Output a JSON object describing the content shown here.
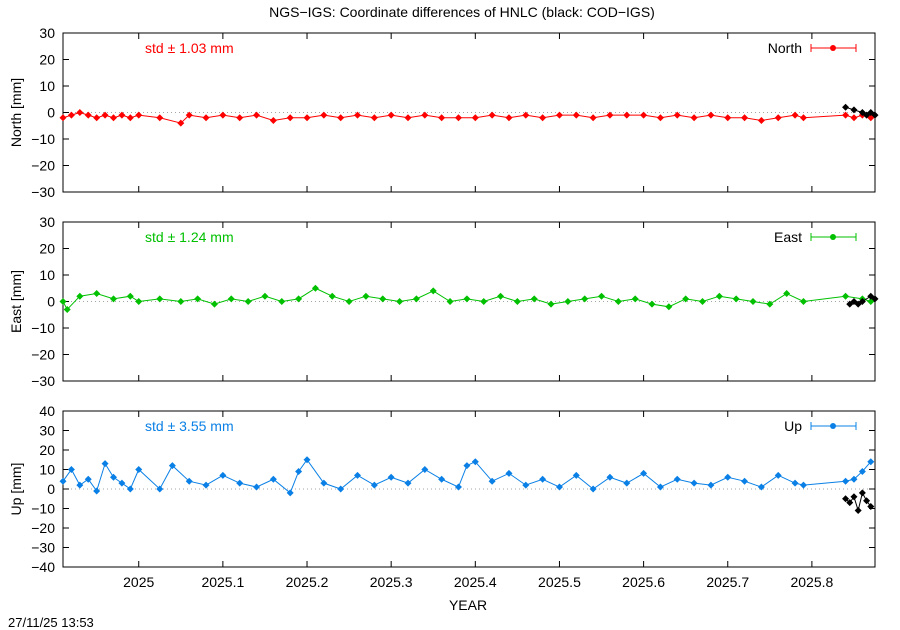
{
  "title": "NGS−IGS: Coordinate differences of HNLC (black: COD−IGS)",
  "xlabel": "YEAR",
  "timestamp": "27/11/25 13:53",
  "x_ticks": [
    {
      "v": 2025.0,
      "label": "2025"
    },
    {
      "v": 2025.1,
      "label": "2025.1"
    },
    {
      "v": 2025.2,
      "label": "2025.2"
    },
    {
      "v": 2025.3,
      "label": "2025.3"
    },
    {
      "v": 2025.4,
      "label": "2025.4"
    },
    {
      "v": 2025.5,
      "label": "2025.5"
    },
    {
      "v": 2025.6,
      "label": "2025.6"
    },
    {
      "v": 2025.7,
      "label": "2025.7"
    },
    {
      "v": 2025.8,
      "label": "2025.8"
    }
  ],
  "chart_data": [
    {
      "type": "line",
      "panel": "north",
      "ylabel": "North [mm]",
      "ylim": [
        -30,
        30
      ],
      "xlim": [
        2024.91,
        2025.875
      ],
      "y_ticks": [
        "30",
        "20",
        "10",
        "0",
        "−10",
        "−20",
        "−30"
      ],
      "y_tick_values": [
        30,
        20,
        10,
        0,
        -10,
        -20,
        -30
      ],
      "legend": "North",
      "legend_position": "top-right",
      "std_text": "std ± 1.03 mm",
      "color": "#ff0000",
      "series": [
        {
          "name": "North",
          "color": "#ff0000",
          "x": [
            2024.91,
            2024.92,
            2024.93,
            2024.94,
            2024.95,
            2024.96,
            2024.97,
            2024.98,
            2024.99,
            2025.0,
            2025.025,
            2025.05,
            2025.06,
            2025.08,
            2025.1,
            2025.12,
            2025.14,
            2025.16,
            2025.18,
            2025.2,
            2025.22,
            2025.24,
            2025.26,
            2025.28,
            2025.3,
            2025.32,
            2025.34,
            2025.36,
            2025.38,
            2025.4,
            2025.42,
            2025.44,
            2025.46,
            2025.48,
            2025.5,
            2025.52,
            2025.54,
            2025.56,
            2025.58,
            2025.6,
            2025.62,
            2025.64,
            2025.66,
            2025.68,
            2025.7,
            2025.72,
            2025.74,
            2025.76,
            2025.78,
            2025.79,
            2025.84,
            2025.85,
            2025.86,
            2025.87
          ],
          "y": [
            -2,
            -1,
            0,
            -1,
            -2,
            -1,
            -2,
            -1,
            -2,
            -1,
            -2,
            -4,
            -1,
            -2,
            -1,
            -2,
            -1,
            -3,
            -2,
            -2,
            -1,
            -2,
            -1,
            -2,
            -1,
            -2,
            -1,
            -2,
            -2,
            -2,
            -1,
            -2,
            -1,
            -2,
            -1,
            -1,
            -2,
            -1,
            -1,
            -1,
            -2,
            -1,
            -2,
            -1,
            -2,
            -2,
            -3,
            -2,
            -1,
            -2,
            -1,
            -2,
            -1,
            -2
          ]
        },
        {
          "name": "",
          "color": "#000000",
          "x": [
            2025.84,
            2025.85,
            2025.86,
            2025.865,
            2025.87,
            2025.875
          ],
          "y": [
            2,
            1,
            0,
            -1,
            0,
            -1
          ]
        }
      ]
    },
    {
      "type": "line",
      "panel": "east",
      "ylabel": "East [mm]",
      "ylim": [
        -30,
        30
      ],
      "xlim": [
        2024.91,
        2025.875
      ],
      "y_ticks": [
        "30",
        "20",
        "10",
        "0",
        "−10",
        "−20",
        "−30"
      ],
      "y_tick_values": [
        30,
        20,
        10,
        0,
        -10,
        -20,
        -30
      ],
      "legend": "East",
      "legend_position": "top-right",
      "std_text": "std ± 1.24 mm",
      "color": "#00c000",
      "series": [
        {
          "name": "East",
          "color": "#00c000",
          "x": [
            2024.91,
            2024.915,
            2024.93,
            2024.95,
            2024.97,
            2024.99,
            2025.0,
            2025.025,
            2025.05,
            2025.07,
            2025.09,
            2025.11,
            2025.13,
            2025.15,
            2025.17,
            2025.19,
            2025.21,
            2025.23,
            2025.25,
            2025.27,
            2025.29,
            2025.31,
            2025.33,
            2025.35,
            2025.37,
            2025.39,
            2025.41,
            2025.43,
            2025.45,
            2025.47,
            2025.49,
            2025.51,
            2025.53,
            2025.55,
            2025.57,
            2025.59,
            2025.61,
            2025.63,
            2025.65,
            2025.67,
            2025.69,
            2025.71,
            2025.73,
            2025.75,
            2025.77,
            2025.79,
            2025.84,
            2025.86,
            2025.87
          ],
          "y": [
            0,
            -3,
            2,
            3,
            1,
            2,
            0,
            1,
            0,
            1,
            -1,
            1,
            0,
            2,
            0,
            1,
            5,
            2,
            0,
            2,
            1,
            0,
            1,
            4,
            0,
            1,
            0,
            2,
            0,
            1,
            -1,
            0,
            1,
            2,
            0,
            1,
            -1,
            -2,
            1,
            0,
            2,
            1,
            0,
            -1,
            3,
            0,
            2,
            1,
            0
          ]
        },
        {
          "name": "",
          "color": "#000000",
          "x": [
            2025.845,
            2025.85,
            2025.855,
            2025.86,
            2025.87,
            2025.875
          ],
          "y": [
            -1,
            0,
            -1,
            0,
            2,
            1
          ]
        }
      ]
    },
    {
      "type": "line",
      "panel": "up",
      "ylabel": "Up [mm]",
      "ylim": [
        -40,
        40
      ],
      "xlim": [
        2024.91,
        2025.875
      ],
      "y_ticks": [
        "40",
        "30",
        "20",
        "10",
        "0",
        "−10",
        "−20",
        "−30",
        "−40"
      ],
      "y_tick_values": [
        40,
        30,
        20,
        10,
        0,
        -10,
        -20,
        -30,
        -40
      ],
      "legend": "Up",
      "legend_position": "top-right",
      "std_text": "std ± 3.55 mm",
      "color": "#0a80e6",
      "series": [
        {
          "name": "Up",
          "color": "#0a80e6",
          "x": [
            2024.91,
            2024.92,
            2024.93,
            2024.94,
            2024.95,
            2024.96,
            2024.97,
            2024.98,
            2024.99,
            2025.0,
            2025.025,
            2025.04,
            2025.06,
            2025.08,
            2025.1,
            2025.12,
            2025.14,
            2025.16,
            2025.18,
            2025.19,
            2025.2,
            2025.22,
            2025.24,
            2025.26,
            2025.28,
            2025.3,
            2025.32,
            2025.34,
            2025.36,
            2025.38,
            2025.39,
            2025.4,
            2025.42,
            2025.44,
            2025.46,
            2025.48,
            2025.5,
            2025.52,
            2025.54,
            2025.56,
            2025.58,
            2025.6,
            2025.62,
            2025.64,
            2025.66,
            2025.68,
            2025.7,
            2025.72,
            2025.74,
            2025.76,
            2025.78,
            2025.79,
            2025.84,
            2025.85,
            2025.86,
            2025.87
          ],
          "y": [
            4,
            10,
            2,
            5,
            -1,
            13,
            6,
            3,
            0,
            10,
            0,
            12,
            4,
            2,
            7,
            3,
            1,
            5,
            -2,
            9,
            15,
            3,
            0,
            7,
            2,
            6,
            3,
            10,
            5,
            1,
            12,
            14,
            4,
            8,
            2,
            5,
            1,
            7,
            0,
            6,
            3,
            8,
            1,
            5,
            3,
            2,
            6,
            4,
            1,
            7,
            3,
            2,
            4,
            5,
            9,
            14
          ]
        },
        {
          "name": "",
          "color": "#000000",
          "x": [
            2025.84,
            2025.845,
            2025.85,
            2025.855,
            2025.86,
            2025.865,
            2025.87
          ],
          "y": [
            -5,
            -7,
            -4,
            -11,
            -2,
            -6,
            -9
          ]
        }
      ]
    }
  ]
}
